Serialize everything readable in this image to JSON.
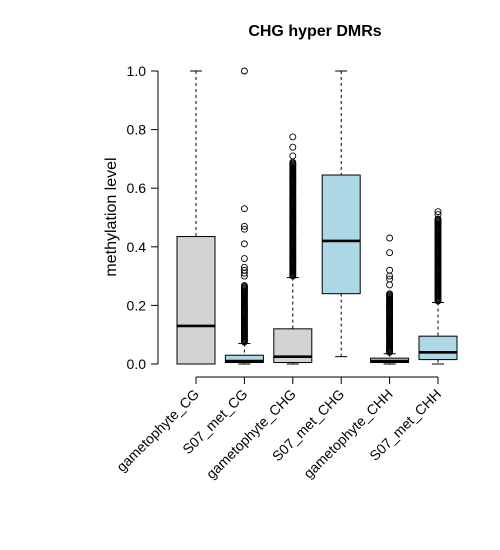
{
  "chart_data": {
    "type": "boxplot",
    "title": "CHG hyper DMRs",
    "xlabel": "",
    "ylabel": "methylation level",
    "ylim": [
      0.0,
      1.0
    ],
    "yticks": [
      "0.0",
      "0.2",
      "0.4",
      "0.6",
      "0.8",
      "1.0"
    ],
    "categories": [
      "gametophyte_CG",
      "S07_met_CG",
      "gametophyte_CHG",
      "S07_met_CHG",
      "gametophyte_CHH",
      "S07_met_CHH"
    ],
    "colors": {
      "gametophyte": "#d3d3d3",
      "S07_met": "#add8e6"
    },
    "boxes": [
      {
        "category": "gametophyte_CG",
        "min": 0.0,
        "q1": 0.0,
        "median": 0.13,
        "q3": 0.435,
        "max": 1.0,
        "outliers_from": null,
        "outliers_to": null,
        "outliers_extra": []
      },
      {
        "category": "S07_met_CG",
        "min": 0.0,
        "q1": 0.005,
        "median": 0.01,
        "q3": 0.03,
        "max": 0.07,
        "outliers_from": 0.075,
        "outliers_to": 0.27,
        "outliers_extra": [
          0.3,
          0.31,
          0.32,
          0.33,
          0.36,
          0.41,
          0.46,
          0.47,
          0.53,
          1.0
        ]
      },
      {
        "category": "gametophyte_CHG",
        "min": 0.0,
        "q1": 0.005,
        "median": 0.025,
        "q3": 0.12,
        "max": 0.295,
        "outliers_from": 0.3,
        "outliers_to": 0.69,
        "outliers_extra": [
          0.71,
          0.74,
          0.775
        ]
      },
      {
        "category": "S07_met_CHG",
        "min": 0.025,
        "q1": 0.24,
        "median": 0.42,
        "q3": 0.645,
        "max": 1.0,
        "outliers_from": null,
        "outliers_to": null,
        "outliers_extra": []
      },
      {
        "category": "gametophyte_CHH",
        "min": 0.0,
        "q1": 0.005,
        "median": 0.01,
        "q3": 0.02,
        "max": 0.035,
        "outliers_from": 0.04,
        "outliers_to": 0.24,
        "outliers_extra": [
          0.27,
          0.29,
          0.3,
          0.32,
          0.38,
          0.43
        ]
      },
      {
        "category": "S07_met_CHH",
        "min": 0.0,
        "q1": 0.015,
        "median": 0.04,
        "q3": 0.095,
        "max": 0.21,
        "outliers_from": 0.215,
        "outliers_to": 0.495,
        "outliers_extra": [
          0.51,
          0.52
        ]
      }
    ]
  }
}
